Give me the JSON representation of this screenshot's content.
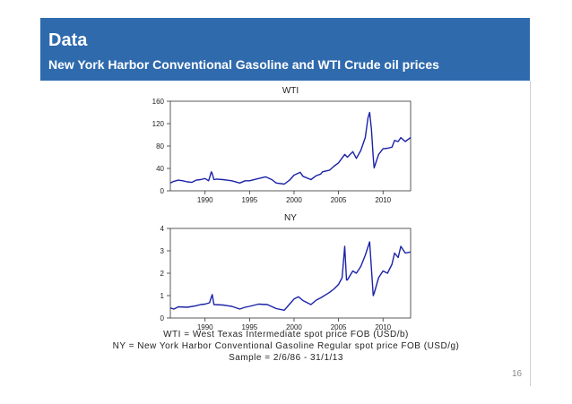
{
  "header": {
    "title": "Data",
    "subtitle": "New York Harbor Conventional Gasoline and WTI Crude oil prices",
    "color": "#2f6aad"
  },
  "chart_data": [
    {
      "type": "line",
      "title": "WTI",
      "ylim": [
        0,
        160
      ],
      "yticks": [
        "0",
        "40",
        "80",
        "120",
        "160"
      ],
      "xlim": [
        1986.1,
        2013.1
      ],
      "xticks": [
        "1990",
        "1995",
        "2000",
        "2005",
        "2010"
      ],
      "line_color": "#1a22a8",
      "x": [
        1986.1,
        1986.5,
        1987,
        1987.5,
        1988,
        1988.5,
        1989,
        1989.5,
        1990,
        1990.4,
        1990.7,
        1990.8,
        1991,
        1991.3,
        1992,
        1993,
        1993.9,
        1994.5,
        1995,
        1996,
        1996.8,
        1997.5,
        1998,
        1998.9,
        1999.5,
        2000,
        2000.7,
        2001,
        2001.9,
        2002.5,
        2003,
        2003.2,
        2004,
        2004.5,
        2005,
        2005.7,
        2006,
        2006.6,
        2007,
        2007.5,
        2008,
        2008.3,
        2008.5,
        2008.7,
        2008.9,
        2009,
        2009.5,
        2010,
        2010.5,
        2011,
        2011.3,
        2011.7,
        2012,
        2012.5,
        2013.1
      ],
      "y": [
        14,
        17,
        19,
        18,
        16,
        15,
        19,
        20,
        22,
        18,
        34,
        31,
        20,
        21,
        20,
        18,
        14,
        18,
        18,
        22,
        25,
        20,
        14,
        12,
        19,
        28,
        33,
        26,
        20,
        27,
        30,
        34,
        37,
        44,
        50,
        65,
        60,
        70,
        58,
        72,
        95,
        130,
        140,
        110,
        60,
        41,
        65,
        75,
        76,
        78,
        90,
        88,
        95,
        88,
        95
      ]
    },
    {
      "type": "line",
      "title": "NY",
      "ylim": [
        0,
        4
      ],
      "yticks": [
        "0",
        "1",
        "2",
        "3",
        "4"
      ],
      "xlim": [
        1986.1,
        2013.1
      ],
      "xticks": [
        "1990",
        "1995",
        "2000",
        "2005",
        "2010"
      ],
      "line_color": "#1a22a8",
      "x": [
        1986.1,
        1986.5,
        1987,
        1988,
        1989,
        1989.5,
        1990,
        1990.5,
        1990.8,
        1991,
        1992,
        1993,
        1993.9,
        1994.5,
        1995,
        1996,
        1997,
        1998,
        1998.9,
        1999.5,
        2000,
        2000.5,
        2001,
        2001.9,
        2002.5,
        2003,
        2004,
        2004.5,
        2005,
        2005.4,
        2005.7,
        2005.9,
        2006,
        2006.6,
        2007,
        2007.5,
        2008,
        2008.5,
        2008.9,
        2009,
        2009.5,
        2010,
        2010.5,
        2011,
        2011.3,
        2011.7,
        2012,
        2012.5,
        2013.1
      ],
      "y": [
        0.45,
        0.4,
        0.5,
        0.48,
        0.55,
        0.6,
        0.62,
        0.68,
        1.05,
        0.6,
        0.58,
        0.52,
        0.4,
        0.48,
        0.52,
        0.62,
        0.6,
        0.42,
        0.35,
        0.62,
        0.85,
        0.95,
        0.78,
        0.6,
        0.8,
        0.9,
        1.15,
        1.3,
        1.5,
        1.8,
        3.2,
        1.7,
        1.7,
        2.1,
        2.0,
        2.3,
        2.8,
        3.4,
        1.0,
        1.1,
        1.8,
        2.1,
        2.0,
        2.4,
        2.9,
        2.7,
        3.2,
        2.9,
        2.95
      ]
    }
  ],
  "caption": {
    "line1": "WTI = West Texas Intermediate spot price FOB (USD/b)",
    "line2": "NY = New York Harbor Conventional Gasoline Regular spot price FOB (USD/g)",
    "line3": "Sample = 2/6/86 - 31/1/13"
  },
  "page_number": "16"
}
